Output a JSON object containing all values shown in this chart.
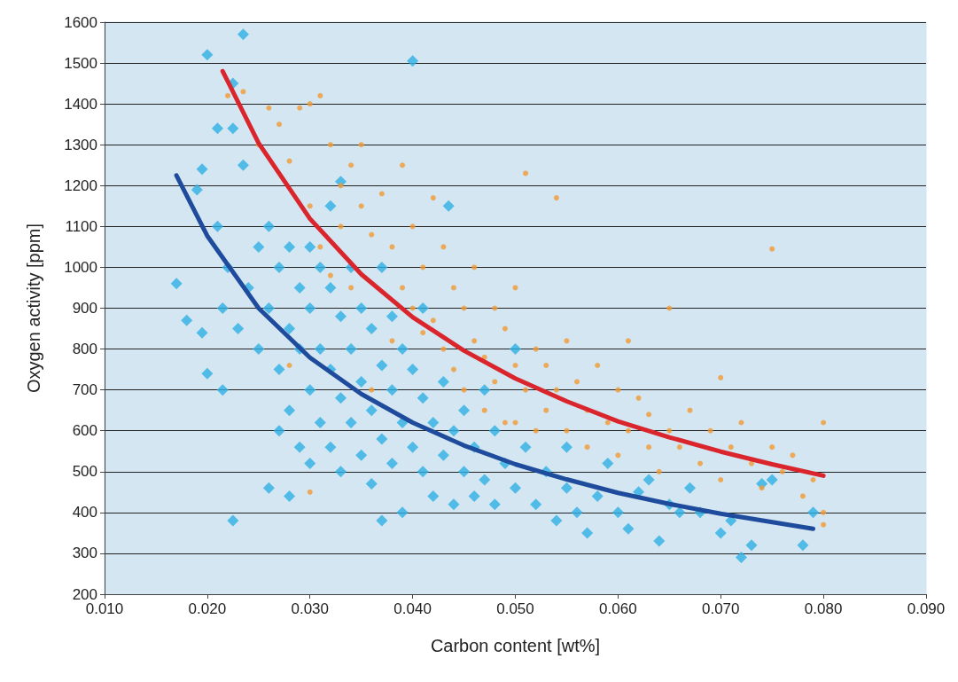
{
  "chart_data": {
    "type": "scatter",
    "xlabel": "Carbon content [wt%]",
    "ylabel": "Oxygen activity [ppm]",
    "grid": "y",
    "xlim": [
      0.01,
      0.09
    ],
    "xticks": [
      {
        "value": 0.01,
        "label": "0.010"
      },
      {
        "value": 0.02,
        "label": "0.020"
      },
      {
        "value": 0.03,
        "label": "0.030"
      },
      {
        "value": 0.04,
        "label": "0.040"
      },
      {
        "value": 0.05,
        "label": "0.050"
      },
      {
        "value": 0.06,
        "label": "0.060"
      },
      {
        "value": 0.07,
        "label": "0.070"
      },
      {
        "value": 0.08,
        "label": "0.080"
      },
      {
        "value": 0.09,
        "label": "0.090"
      }
    ],
    "ylim": [
      200,
      1600
    ],
    "yticks": [
      200,
      300,
      400,
      500,
      600,
      700,
      800,
      900,
      1000,
      1100,
      1200,
      1300,
      1400,
      1500,
      1600
    ],
    "series": [
      {
        "marker": "diamond",
        "color": "#2fb0e3",
        "x": [
          0.02,
          0.0235,
          0.0225,
          0.021,
          0.0225,
          0.017,
          0.018,
          0.0195,
          0.02,
          0.0215,
          0.0225,
          0.026,
          0.028,
          0.033,
          0.04,
          0.0435,
          0.0235,
          0.019,
          0.0195,
          0.032,
          0.021,
          0.022,
          0.0215,
          0.023,
          0.024,
          0.025,
          0.025,
          0.026,
          0.026,
          0.027,
          0.027,
          0.027,
          0.028,
          0.028,
          0.028,
          0.029,
          0.029,
          0.029,
          0.03,
          0.03,
          0.03,
          0.03,
          0.031,
          0.031,
          0.031,
          0.032,
          0.032,
          0.032,
          0.033,
          0.033,
          0.033,
          0.034,
          0.034,
          0.034,
          0.035,
          0.035,
          0.035,
          0.036,
          0.036,
          0.036,
          0.037,
          0.037,
          0.037,
          0.037,
          0.038,
          0.038,
          0.038,
          0.039,
          0.039,
          0.039,
          0.04,
          0.04,
          0.041,
          0.041,
          0.041,
          0.042,
          0.042,
          0.043,
          0.043,
          0.044,
          0.044,
          0.045,
          0.045,
          0.046,
          0.046,
          0.047,
          0.047,
          0.048,
          0.048,
          0.049,
          0.05,
          0.05,
          0.051,
          0.052,
          0.053,
          0.054,
          0.055,
          0.055,
          0.056,
          0.057,
          0.058,
          0.059,
          0.06,
          0.061,
          0.062,
          0.063,
          0.064,
          0.065,
          0.066,
          0.067,
          0.068,
          0.07,
          0.071,
          0.072,
          0.073,
          0.074,
          0.075,
          0.078,
          0.079
        ],
        "values": [
          1520,
          1570,
          1450,
          1340,
          1340,
          960,
          870,
          840,
          740,
          700,
          380,
          460,
          440,
          1210,
          1505,
          1150,
          1250,
          1190,
          1240,
          1150,
          1100,
          1000,
          900,
          850,
          950,
          1050,
          800,
          1100,
          900,
          1000,
          750,
          600,
          1050,
          850,
          650,
          950,
          800,
          560,
          1050,
          900,
          700,
          520,
          1000,
          800,
          620,
          950,
          750,
          560,
          880,
          680,
          500,
          1000,
          800,
          620,
          900,
          720,
          540,
          850,
          650,
          470,
          1000,
          760,
          580,
          380,
          880,
          700,
          520,
          800,
          620,
          400,
          750,
          560,
          900,
          680,
          500,
          620,
          440,
          720,
          540,
          600,
          420,
          650,
          500,
          560,
          440,
          700,
          480,
          600,
          420,
          520,
          800,
          460,
          560,
          420,
          500,
          380,
          460,
          560,
          400,
          350,
          440,
          520,
          400,
          360,
          450,
          480,
          330,
          420,
          400,
          460,
          400,
          350,
          380,
          290,
          320,
          470,
          480,
          320,
          400
        ]
      },
      {
        "marker": "circle",
        "color": "#f29a33",
        "x": [
          0.022,
          0.0235,
          0.025,
          0.026,
          0.027,
          0.028,
          0.029,
          0.03,
          0.031,
          0.032,
          0.033,
          0.034,
          0.035,
          0.03,
          0.031,
          0.032,
          0.033,
          0.034,
          0.035,
          0.036,
          0.037,
          0.038,
          0.039,
          0.039,
          0.04,
          0.04,
          0.041,
          0.042,
          0.042,
          0.043,
          0.043,
          0.044,
          0.044,
          0.045,
          0.045,
          0.046,
          0.046,
          0.047,
          0.047,
          0.048,
          0.048,
          0.049,
          0.049,
          0.05,
          0.05,
          0.05,
          0.051,
          0.051,
          0.052,
          0.052,
          0.053,
          0.053,
          0.054,
          0.054,
          0.055,
          0.055,
          0.056,
          0.057,
          0.057,
          0.058,
          0.059,
          0.06,
          0.06,
          0.061,
          0.061,
          0.062,
          0.063,
          0.063,
          0.064,
          0.065,
          0.065,
          0.066,
          0.067,
          0.068,
          0.069,
          0.07,
          0.07,
          0.071,
          0.072,
          0.073,
          0.074,
          0.075,
          0.075,
          0.076,
          0.077,
          0.078,
          0.079,
          0.08,
          0.08,
          0.08,
          0.03,
          0.028,
          0.036,
          0.038,
          0.041
        ],
        "values": [
          1420,
          1430,
          1300,
          1390,
          1350,
          1260,
          1390,
          1400,
          1420,
          1300,
          1200,
          1250,
          1300,
          1150,
          1050,
          980,
          1100,
          950,
          1150,
          1080,
          1180,
          1050,
          1250,
          950,
          1100,
          900,
          1000,
          1170,
          870,
          1050,
          800,
          950,
          750,
          900,
          700,
          1000,
          820,
          780,
          650,
          900,
          720,
          850,
          620,
          950,
          760,
          620,
          1230,
          700,
          800,
          600,
          760,
          650,
          1170,
          700,
          820,
          600,
          720,
          650,
          560,
          760,
          620,
          700,
          540,
          820,
          600,
          680,
          560,
          640,
          500,
          900,
          600,
          560,
          650,
          520,
          600,
          730,
          480,
          560,
          620,
          520,
          460,
          1045,
          560,
          500,
          540,
          440,
          480,
          620,
          400,
          370,
          450,
          760,
          700,
          820,
          840
        ]
      },
      {
        "type": "line",
        "marker": "none",
        "line_style": "solid",
        "color": "#d9252b",
        "x": [
          0.0215,
          0.025,
          0.03,
          0.035,
          0.04,
          0.045,
          0.05,
          0.055,
          0.06,
          0.065,
          0.07,
          0.075,
          0.08
        ],
        "values": [
          1480,
          1304,
          1119,
          983,
          878,
          796,
          728,
          672,
          623,
          584,
          549,
          518,
          490
        ]
      },
      {
        "type": "line",
        "marker": "none",
        "line_style": "solid",
        "color": "#1f4b9c",
        "x": [
          0.017,
          0.02,
          0.025,
          0.03,
          0.035,
          0.04,
          0.045,
          0.05,
          0.055,
          0.06,
          0.065,
          0.07,
          0.079
        ],
        "values": [
          1225,
          1077,
          900,
          779,
          690,
          620,
          564,
          518,
          481,
          448,
          421,
          397,
          360
        ]
      }
    ]
  }
}
